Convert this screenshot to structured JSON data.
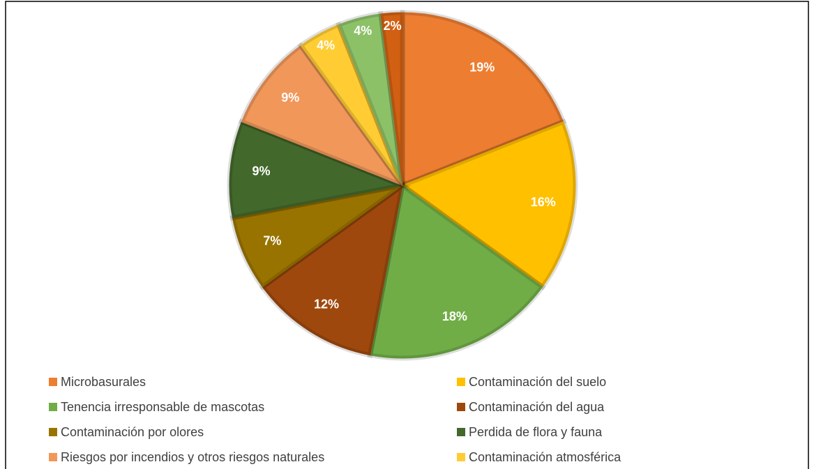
{
  "chart_data": {
    "type": "pie",
    "categories": [
      "Microbasurales",
      "Contaminación del suelo",
      "Tenencia irresponsable de mascotas",
      "Contaminación del agua",
      "Contaminación por olores",
      "Perdida de flora y fauna",
      "Riesgos por incendios y otros riesgos naturales",
      "Contaminación atmosférica",
      null,
      null
    ],
    "values": [
      19,
      16,
      18,
      12,
      7,
      9,
      9,
      4,
      4,
      2
    ],
    "value_labels": [
      "19%",
      "16%",
      "18%",
      "12%",
      "7%",
      "9%",
      "9%",
      "4%",
      "4%",
      "2%"
    ],
    "colors": [
      "#ED7D31",
      "#FFC000",
      "#70AD47",
      "#9E480E",
      "#997300",
      "#43682B",
      "#F1975A",
      "#FFCD33",
      "#8CC168",
      "#D26012"
    ],
    "legend": "bottom"
  }
}
